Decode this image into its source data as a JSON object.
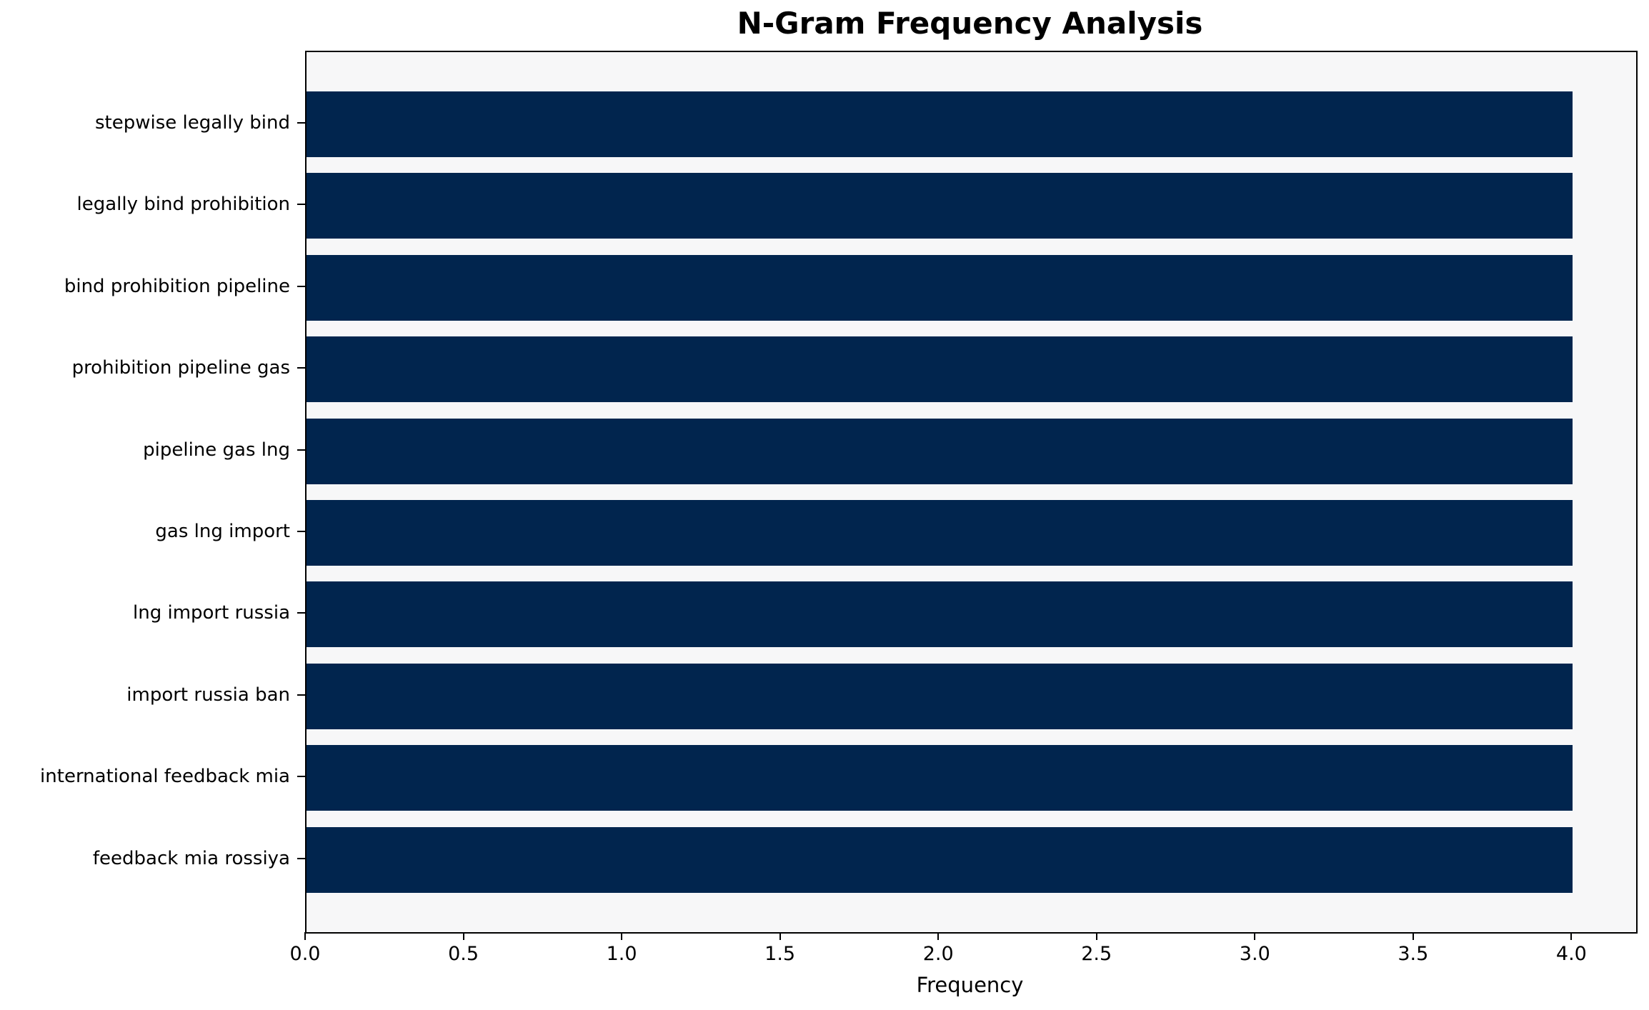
{
  "chart_data": {
    "type": "bar",
    "orientation": "horizontal",
    "title": "N-Gram Frequency Analysis",
    "xlabel": "Frequency",
    "ylabel": "",
    "categories": [
      "stepwise legally bind",
      "legally bind prohibition",
      "bind prohibition pipeline",
      "prohibition pipeline gas",
      "pipeline gas lng",
      "gas lng import",
      "lng import russia",
      "import russia ban",
      "international feedback mia",
      "feedback mia rossiya"
    ],
    "values": [
      4,
      4,
      4,
      4,
      4,
      4,
      4,
      4,
      4,
      4
    ],
    "xlim": [
      0,
      4.2
    ],
    "xticks": [
      0.0,
      0.5,
      1.0,
      1.5,
      2.0,
      2.5,
      3.0,
      3.5,
      4.0
    ],
    "grid": false,
    "legend": null,
    "bar_color": "#01254e",
    "plot_background": "#f7f7f8",
    "figure_background": "#ffffff",
    "text_color": "#000000"
  }
}
